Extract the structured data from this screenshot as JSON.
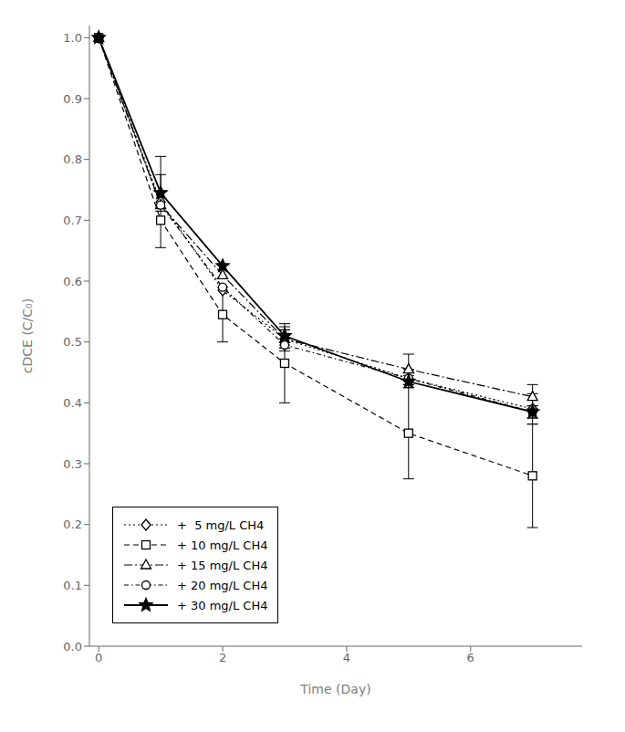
{
  "chart_data": {
    "type": "line",
    "title": "",
    "xlabel": "Time (Day)",
    "ylabel": "cDCE (C/C₀)",
    "x": [
      0,
      1,
      2,
      3,
      5,
      7
    ],
    "xlim": [
      -0.15,
      7.8
    ],
    "xticks": [
      0,
      2,
      4,
      6
    ],
    "ylim": [
      0.0,
      1.02
    ],
    "yticks": [
      {
        "value": 0,
        "label": "0.0"
      },
      0.1,
      0.2,
      0.3,
      0.4,
      0.5,
      0.6,
      0.7,
      0.8,
      0.9,
      {
        "value": 1,
        "label": "1.0"
      }
    ],
    "grid": false,
    "legend": "lower left",
    "series": [
      {
        "name": "+  5 mg/L CH4",
        "color": "#000000",
        "values": [
          1.0,
          0.73,
          0.585,
          0.505,
          0.44,
          0.39
        ],
        "yerr": [
          0.0,
          0.075,
          0.0,
          0.015,
          0.015,
          0.025
        ],
        "marker": "diamond",
        "line_style": "dotted"
      },
      {
        "name": "+ 10 mg/L CH4",
        "color": "#000000",
        "values": [
          1.0,
          0.7,
          0.545,
          0.465,
          0.35,
          0.28
        ],
        "yerr": [
          0.0,
          0.0,
          0.045,
          0.065,
          0.075,
          0.085
        ],
        "marker": "square",
        "line_style": "dashed"
      },
      {
        "name": "+ 15 mg/L CH4",
        "color": "#000000",
        "values": [
          1.0,
          0.725,
          0.61,
          0.505,
          0.455,
          0.41
        ],
        "yerr": [
          0.0,
          0.0,
          0.0,
          0.015,
          0.025,
          0.02
        ],
        "marker": "triangle",
        "line_style": "dashdot"
      },
      {
        "name": "+ 20 mg/L CH4",
        "color": "#000000",
        "values": [
          1.0,
          0.725,
          0.59,
          0.495,
          0.44,
          0.385
        ],
        "yerr": [
          0.0,
          0.0,
          0.0,
          0.01,
          0.01,
          0.01
        ],
        "marker": "circle",
        "line_style": "dashdot"
      },
      {
        "name": "+ 30 mg/L CH4",
        "color": "#000000",
        "values": [
          1.0,
          0.745,
          0.625,
          0.51,
          0.435,
          0.385
        ],
        "yerr": [
          0.0,
          0.03,
          0.0,
          0.015,
          0.01,
          0.01
        ],
        "marker": "star",
        "line_style": "solid"
      }
    ]
  }
}
